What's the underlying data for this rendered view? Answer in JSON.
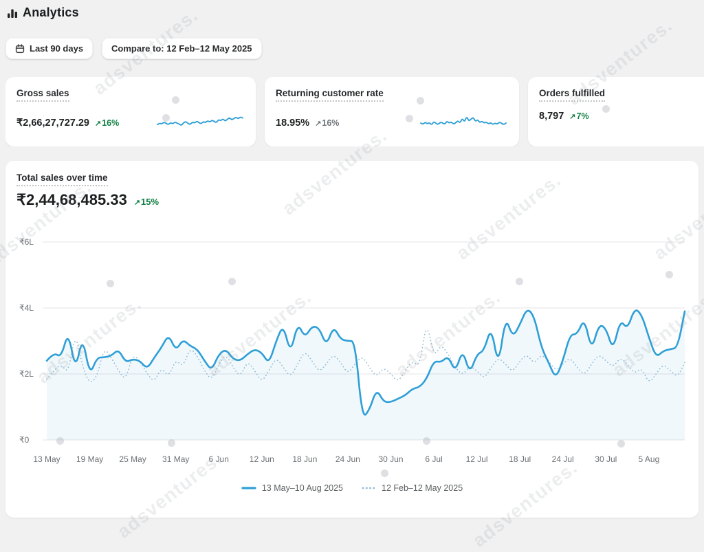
{
  "page": {
    "title": "Analytics",
    "watermark": "adsventures."
  },
  "icons": {
    "trend_up": "↗"
  },
  "toolbar": {
    "date_range_label": "Last 90 days",
    "compare_label": "Compare to: 12 Feb–12 May 2025"
  },
  "metric_cards": [
    {
      "title": "Gross sales",
      "value": "₹2,66,27,727.29",
      "delta": "16%",
      "delta_direction": "up",
      "delta_color": "#108043"
    },
    {
      "title": "Returning customer rate",
      "value": "18.95%",
      "delta": "16%",
      "delta_direction": "up",
      "delta_color": "#70757a"
    },
    {
      "title": "Orders fulfilled",
      "value": "8,797",
      "delta": "7%",
      "delta_direction": "up",
      "delta_color": "#108043"
    }
  ],
  "main_chart": {
    "title": "Total sales over time",
    "value": "₹2,44,68,485.33",
    "delta": "15%",
    "delta_direction": "up",
    "delta_color": "#108043"
  },
  "legend": [
    {
      "label": "13 May–10 Aug 2025",
      "style": "solid",
      "color": "#2e9fd6"
    },
    {
      "label": "12 Feb–12 May 2025",
      "style": "dotted",
      "color": "#97bfd4"
    }
  ],
  "colors": {
    "current_line": "#2e9fd6",
    "previous_line": "#97bfd4",
    "area_fill": "rgba(46,159,214,0.07)",
    "grid": "#e4e4e8",
    "axis_text": "#6d7175",
    "positive_green": "#108043",
    "neutral_gray": "#70757a",
    "background": "#f1f1f2",
    "card": "#ffffff"
  },
  "chart_data": {
    "main": {
      "type": "line",
      "title": "Total sales over time",
      "xlabel": "",
      "ylabel": "",
      "y_unit": "₹ lakh (L)",
      "ylim": [
        0,
        6
      ],
      "grid": "horizontal",
      "legend_position": "bottom-center",
      "yticks": {
        "values": [
          0,
          2,
          4,
          6
        ],
        "labels": [
          "₹0",
          "₹2L",
          "₹4L",
          "₹6L"
        ]
      },
      "xticks": [
        "13 May",
        "19 May",
        "25 May",
        "31 May",
        "6 Jun",
        "12 Jun",
        "18 Jun",
        "24 Jun",
        "30 Jun",
        "6 Jul",
        "12 Jul",
        "18 Jul",
        "24 Jul",
        "30 Jul",
        "5 Aug"
      ],
      "xtick_interval_days": 6,
      "x_range_days": 90,
      "series": [
        {
          "name": "13 May–10 Aug 2025",
          "style": "solid",
          "color": "#2e9fd6",
          "values": [
            2.4,
            2.65,
            2.5,
            3.3,
            2.1,
            3.15,
            1.95,
            2.5,
            2.5,
            2.55,
            2.75,
            2.35,
            2.45,
            2.4,
            2.15,
            2.5,
            2.8,
            3.2,
            2.7,
            3.05,
            2.85,
            2.75,
            2.4,
            2.1,
            2.6,
            2.75,
            2.45,
            2.4,
            2.6,
            2.75,
            2.65,
            2.3,
            3.0,
            3.5,
            2.6,
            3.55,
            3.1,
            3.45,
            3.4,
            2.85,
            3.45,
            3.05,
            3.0,
            3.0,
            0.65,
            0.9,
            1.55,
            1.15,
            1.15,
            1.25,
            1.35,
            1.55,
            1.6,
            1.85,
            2.4,
            2.35,
            2.55,
            2.05,
            2.75,
            2.0,
            2.6,
            2.7,
            3.45,
            2.2,
            3.75,
            3.1,
            3.5,
            4.0,
            3.75,
            2.8,
            2.35,
            1.85,
            2.4,
            3.2,
            3.2,
            3.7,
            2.7,
            3.5,
            3.4,
            2.7,
            3.65,
            3.35,
            4.0,
            3.8,
            3.1,
            2.5,
            2.7,
            2.75,
            2.8,
            3.9
          ]
        },
        {
          "name": "12 Feb–12 May 2025",
          "style": "dotted",
          "color": "#97bfd4",
          "values": [
            1.85,
            2.1,
            2.3,
            2.0,
            3.3,
            2.2,
            1.7,
            1.9,
            2.8,
            2.5,
            2.1,
            1.8,
            2.6,
            2.4,
            2.0,
            1.75,
            2.2,
            1.9,
            2.45,
            2.2,
            2.8,
            2.55,
            2.1,
            1.8,
            2.3,
            2.6,
            2.2,
            1.9,
            2.4,
            2.1,
            1.75,
            2.1,
            2.5,
            2.2,
            1.9,
            2.3,
            2.7,
            2.4,
            2.05,
            2.3,
            2.6,
            2.35,
            2.0,
            2.3,
            2.55,
            2.2,
            1.9,
            2.2,
            2.0,
            1.75,
            2.1,
            2.4,
            2.2,
            3.65,
            2.5,
            2.9,
            2.6,
            2.2,
            1.95,
            2.25,
            2.1,
            1.85,
            2.2,
            2.5,
            2.3,
            2.05,
            2.4,
            2.6,
            2.3,
            2.6,
            2.4,
            2.1,
            2.3,
            2.5,
            2.2,
            1.95,
            2.3,
            2.6,
            2.4,
            2.2,
            2.5,
            2.3,
            2.0,
            2.2,
            1.7,
            2.0,
            2.3,
            2.1,
            1.9,
            2.35
          ]
        }
      ]
    },
    "sparklines": {
      "gross_sales": [
        0.42,
        0.5,
        0.45,
        0.55,
        0.48,
        0.42,
        0.52,
        0.46,
        0.55,
        0.5,
        0.44,
        0.38,
        0.52,
        0.58,
        0.48,
        0.42,
        0.55,
        0.5,
        0.6,
        0.52,
        0.46,
        0.58,
        0.52,
        0.62,
        0.55,
        0.65,
        0.58,
        0.52,
        0.68,
        0.62,
        0.72,
        0.6,
        0.7,
        0.78,
        0.66,
        0.74,
        0.8,
        0.72,
        0.82,
        0.76
      ],
      "returning_customer_rate": [
        0.5,
        0.42,
        0.55,
        0.46,
        0.52,
        0.4,
        0.58,
        0.48,
        0.42,
        0.55,
        0.5,
        0.44,
        0.6,
        0.5,
        0.56,
        0.44,
        0.52,
        0.62,
        0.5,
        0.75,
        0.55,
        0.85,
        0.6,
        0.7,
        0.8,
        0.58,
        0.68,
        0.52,
        0.6,
        0.5,
        0.55,
        0.45,
        0.52,
        0.42,
        0.5,
        0.44,
        0.55,
        0.48,
        0.42,
        0.5
      ]
    }
  }
}
